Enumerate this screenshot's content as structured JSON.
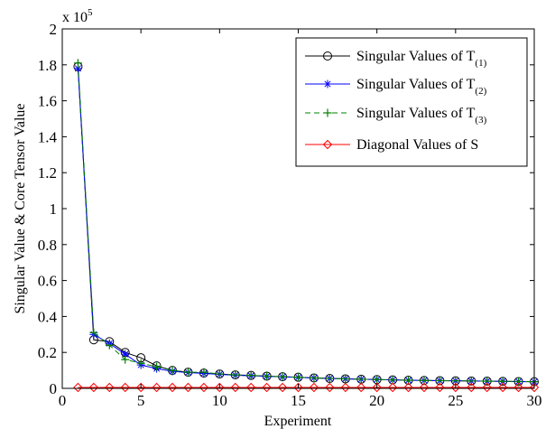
{
  "chart_data": {
    "type": "line",
    "title": "",
    "xlabel": "Experiment",
    "ylabel": "Singular Value & Core Tensor Value",
    "exponent_label": "x 10",
    "exponent_power": "5",
    "xlim": [
      0,
      30
    ],
    "ylim": [
      0,
      2
    ],
    "xticks": [
      0,
      5,
      10,
      15,
      20,
      25,
      30
    ],
    "xtick_labels": [
      "0",
      "5",
      "10",
      "15",
      "20",
      "25",
      "30"
    ],
    "yticks": [
      0,
      0.2,
      0.4,
      0.6,
      0.8,
      1,
      1.2,
      1.4,
      1.6,
      1.8,
      2
    ],
    "ytick_labels": [
      "0",
      "0.2",
      "0.4",
      "0.6",
      "0.8",
      "1",
      "1.2",
      "1.4",
      "1.6",
      "1.8",
      "2"
    ],
    "grid": false,
    "legend_position": "top-right",
    "x": [
      1,
      2,
      3,
      4,
      5,
      6,
      7,
      8,
      9,
      10,
      11,
      12,
      13,
      14,
      15,
      16,
      17,
      18,
      19,
      20,
      21,
      22,
      23,
      24,
      25,
      26,
      27,
      28,
      29,
      30
    ],
    "series": [
      {
        "name_main": "Singular Values of T",
        "name_sub": "(1)",
        "color": "#000000",
        "marker": "circle",
        "dash": "solid",
        "values": [
          1.79,
          0.27,
          0.26,
          0.2,
          0.17,
          0.125,
          0.1,
          0.09,
          0.085,
          0.08,
          0.075,
          0.072,
          0.068,
          0.065,
          0.062,
          0.058,
          0.055,
          0.053,
          0.051,
          0.049,
          0.047,
          0.045,
          0.044,
          0.043,
          0.042,
          0.041,
          0.04,
          0.039,
          0.038,
          0.037
        ]
      },
      {
        "name_main": "Singular Values of T",
        "name_sub": "(2)",
        "color": "#0000ff",
        "marker": "asterisk",
        "dash": "solid",
        "values": [
          1.78,
          0.3,
          0.25,
          0.19,
          0.13,
          0.11,
          0.095,
          0.088,
          0.083,
          0.078,
          0.073,
          0.07,
          0.067,
          0.064,
          0.061,
          0.058,
          0.055,
          0.053,
          0.051,
          0.049,
          0.047,
          0.045,
          0.044,
          0.043,
          0.042,
          0.041,
          0.04,
          0.039,
          0.038,
          0.037
        ]
      },
      {
        "name_main": "Singular Values of T",
        "name_sub": "(3)",
        "color": "#008000",
        "marker": "plus",
        "dash": "dashed",
        "values": [
          1.81,
          0.31,
          0.24,
          0.16,
          0.14,
          0.12,
          0.1,
          0.09,
          0.09,
          0.08,
          0.075,
          0.072,
          0.068,
          0.065,
          0.062,
          0.058,
          0.055,
          0.053,
          0.051,
          0.049,
          0.047,
          0.045,
          0.044,
          0.043,
          0.042,
          0.041,
          0.04,
          0.039,
          0.038,
          0.037
        ]
      },
      {
        "name_main": "Diagonal Values of S",
        "name_sub": "",
        "color": "#ff0000",
        "marker": "diamond",
        "dash": "solid",
        "values": [
          0.005,
          0.005,
          0.005,
          0.005,
          0.005,
          0.005,
          0.005,
          0.005,
          0.005,
          0.005,
          0.005,
          0.005,
          0.005,
          0.005,
          0.005,
          0.005,
          0.005,
          0.005,
          0.005,
          0.005,
          0.005,
          0.005,
          0.005,
          0.005,
          0.005,
          0.005,
          0.005,
          0.005,
          0.005,
          0.005
        ]
      }
    ]
  }
}
